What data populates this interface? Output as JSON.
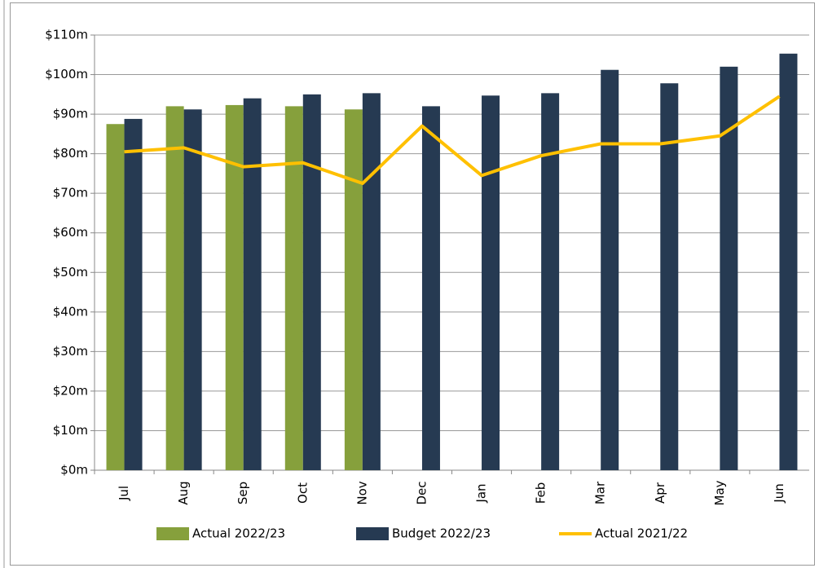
{
  "chart_data": {
    "type": "bar_line",
    "categories": [
      "Jul",
      "Aug",
      "Sep",
      "Oct",
      "Nov",
      "Dec",
      "Jan",
      "Feb",
      "Mar",
      "Apr",
      "May",
      "Jun"
    ],
    "series": [
      {
        "name": "Actual 2022/23",
        "type": "bar",
        "color": "#86a03c",
        "values": [
          87.5,
          92,
          92.3,
          92,
          91.2,
          null,
          null,
          null,
          null,
          null,
          null,
          null
        ]
      },
      {
        "name": "Budget 2022/23",
        "type": "bar",
        "color": "#263a52",
        "values": [
          88.8,
          91.2,
          94,
          95,
          95.3,
          92,
          94.7,
          95.3,
          101.2,
          97.8,
          102,
          105.3
        ]
      },
      {
        "name": "Actual 2021/22",
        "type": "line",
        "color": "#ffc000",
        "values": [
          80.5,
          81.5,
          76.7,
          77.7,
          72.5,
          87,
          74.5,
          79.5,
          82.5,
          82.5,
          84.5,
          94.5
        ]
      }
    ],
    "ylim": [
      0,
      110
    ],
    "yticks": [
      {
        "value": 0,
        "label": "$0m"
      },
      {
        "value": 10,
        "label": "$10m"
      },
      {
        "value": 20,
        "label": "$20m"
      },
      {
        "value": 30,
        "label": "$30m"
      },
      {
        "value": 40,
        "label": "$40m"
      },
      {
        "value": 50,
        "label": "$50m"
      },
      {
        "value": 60,
        "label": "$60m"
      },
      {
        "value": 70,
        "label": "$70m"
      },
      {
        "value": 80,
        "label": "$80m"
      },
      {
        "value": 90,
        "label": "$90m"
      },
      {
        "value": 100,
        "label": "$100m"
      },
      {
        "value": 110,
        "label": "$110m"
      }
    ],
    "grid": true,
    "legend": "bottom"
  }
}
